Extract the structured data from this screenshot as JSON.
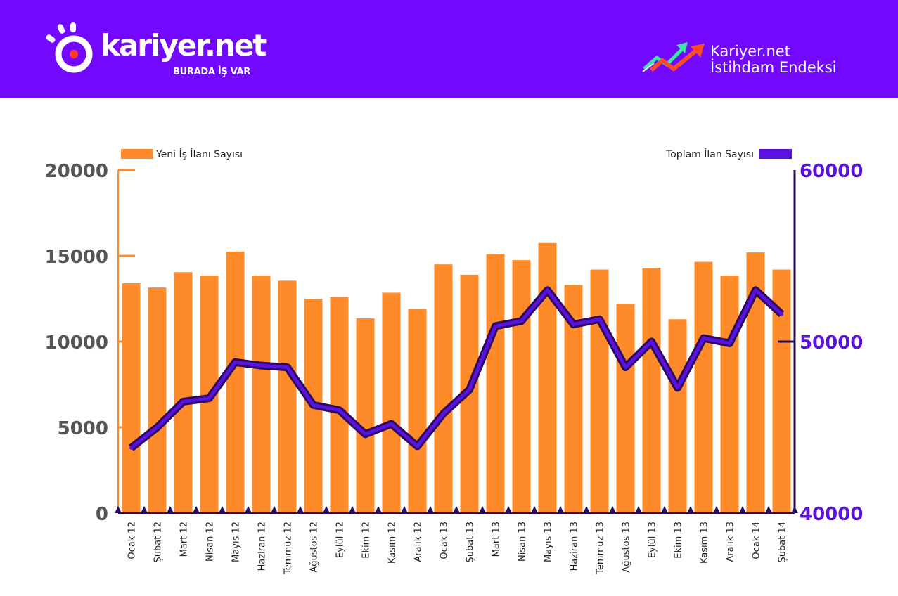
{
  "header": {
    "brand_name": "kariyer.net",
    "brand_tagline": "BURADA İŞ VAR",
    "index_title_line1": "Kariyer.net",
    "index_title_line2": "İstihdam Endeksi"
  },
  "colors": {
    "header_bg": "#7209fd",
    "white": "#ffffff",
    "logo_dot": "#ff3b30",
    "bar_orange": "#ff8a2a",
    "line_purple": "#5b12e0",
    "line_dark": "#2a0a5e",
    "arrow_green": "#3fe3a9",
    "arrow_red": "#ff4a2a",
    "axis_text": "#555555"
  },
  "icons": {
    "logo": "sun-circle-logo-icon",
    "index": "trend-arrows-icon"
  },
  "chart_data": {
    "type": "bar",
    "categories": [
      "Ocak 12",
      "Şubat 12",
      "Mart 12",
      "Nisan 12",
      "Mayıs 12",
      "Haziran 12",
      "Temmuz 12",
      "Ağustos 12",
      "Eylül 12",
      "Ekim 12",
      "Kasım 12",
      "Aralık 12",
      "Ocak 13",
      "Şubat 13",
      "Mart 13",
      "Nisan 13",
      "Mayıs 13",
      "Haziran 13",
      "Temmuz 13",
      "Ağustos 13",
      "Eylül 13",
      "Ekim 13",
      "Kasım 13",
      "Aralık 13",
      "Ocak 14",
      "Şubat 14"
    ],
    "series": [
      {
        "name": "Yeni İş İlanı Sayısı",
        "type": "bar",
        "axis": "left",
        "values": [
          13400,
          13150,
          14050,
          13850,
          15250,
          13850,
          13550,
          12500,
          12600,
          11350,
          12850,
          11900,
          14500,
          13900,
          15100,
          14750,
          15750,
          13300,
          14200,
          12200,
          14300,
          11300,
          14650,
          13850,
          15200,
          14200
        ]
      },
      {
        "name": "Toplam İlan Sayısı",
        "type": "line",
        "axis": "right",
        "values": [
          43800,
          45000,
          46500,
          46700,
          48800,
          48600,
          48500,
          46300,
          46000,
          44600,
          45200,
          43900,
          45800,
          47200,
          50900,
          51200,
          53000,
          51000,
          51300,
          48500,
          50000,
          47300,
          50200,
          49900,
          53000,
          51600
        ]
      }
    ],
    "y_left": {
      "ticks": [
        "20000",
        "15000",
        "10000",
        "5000",
        "0"
      ],
      "ylim": [
        0,
        20000
      ]
    },
    "y_right": {
      "ticks": [
        "60000",
        "50000",
        "40000"
      ],
      "ylim": [
        40000,
        60000
      ]
    },
    "legend": {
      "bar_label": "Yeni İş İlanı Sayısı",
      "line_label": "Toplam İlan Sayısı"
    }
  }
}
